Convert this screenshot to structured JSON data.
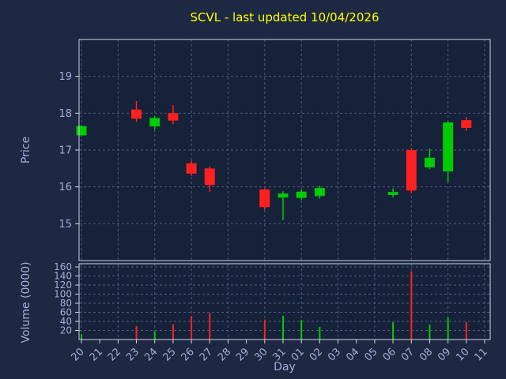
{
  "title": "SCVL - last updated 10/04/2026",
  "colors": {
    "figure_bg": "#1d2842",
    "plot_bg": "#16213a",
    "title": "#ffff00",
    "axis_label": "#a4aed8",
    "tick": "#a4aed8",
    "spine": "#cfd4e2",
    "grid": "#4e5a7e",
    "up": "#00cc00",
    "down": "#ff2020"
  },
  "chart_data": {
    "type": "candlestick",
    "title": "SCVL - last updated 10/04/2026",
    "xlabel": "Day",
    "price_ylabel": "Price",
    "volume_ylabel": "Volume (0000)",
    "grid": "dashed",
    "legend": "none",
    "x_ticks": [
      "20",
      "21",
      "22",
      "23",
      "24",
      "25",
      "26",
      "27",
      "28",
      "29",
      "30",
      "31",
      "01",
      "02",
      "03",
      "04",
      "05",
      "06",
      "07",
      "08",
      "09",
      "10",
      "11"
    ],
    "price_yticks": [
      15,
      16,
      17,
      18,
      19
    ],
    "price_ylim": [
      14,
      20
    ],
    "volume_yticks": [
      20,
      40,
      60,
      80,
      100,
      120,
      140,
      160
    ],
    "volume_ylim": [
      0,
      167
    ],
    "candles": [
      {
        "day": "20",
        "open": 17.4,
        "high": 17.68,
        "low": 17.37,
        "close": 17.65,
        "volume": 12
      },
      {
        "day": "23",
        "open": 18.1,
        "high": 18.33,
        "low": 17.76,
        "close": 17.85,
        "volume": 30
      },
      {
        "day": "24",
        "open": 17.64,
        "high": 17.92,
        "low": 17.56,
        "close": 17.87,
        "volume": 18
      },
      {
        "day": "25",
        "open": 18.0,
        "high": 18.22,
        "low": 17.7,
        "close": 17.8,
        "volume": 33
      },
      {
        "day": "26",
        "open": 16.64,
        "high": 16.72,
        "low": 16.3,
        "close": 16.36,
        "volume": 52
      },
      {
        "day": "27",
        "open": 16.5,
        "high": 16.55,
        "low": 15.86,
        "close": 16.05,
        "volume": 58
      },
      {
        "day": "30",
        "open": 15.93,
        "high": 15.97,
        "low": 15.38,
        "close": 15.45,
        "volume": 44
      },
      {
        "day": "31",
        "open": 15.71,
        "high": 15.88,
        "low": 15.1,
        "close": 15.82,
        "volume": 52
      },
      {
        "day": "01",
        "open": 15.7,
        "high": 15.93,
        "low": 15.64,
        "close": 15.87,
        "volume": 43
      },
      {
        "day": "02",
        "open": 15.75,
        "high": 16.03,
        "low": 15.68,
        "close": 15.97,
        "volume": 28
      },
      {
        "day": "06",
        "open": 15.78,
        "high": 15.96,
        "low": 15.72,
        "close": 15.86,
        "volume": 38
      },
      {
        "day": "07",
        "open": 17.0,
        "high": 17.06,
        "low": 15.82,
        "close": 15.9,
        "volume": 150
      },
      {
        "day": "08",
        "open": 16.53,
        "high": 17.04,
        "low": 16.48,
        "close": 16.79,
        "volume": 33
      },
      {
        "day": "09",
        "open": 16.42,
        "high": 17.78,
        "low": 16.12,
        "close": 17.75,
        "volume": 48
      },
      {
        "day": "10",
        "open": 17.81,
        "high": 17.89,
        "low": 17.52,
        "close": 17.6,
        "volume": 38
      }
    ]
  }
}
